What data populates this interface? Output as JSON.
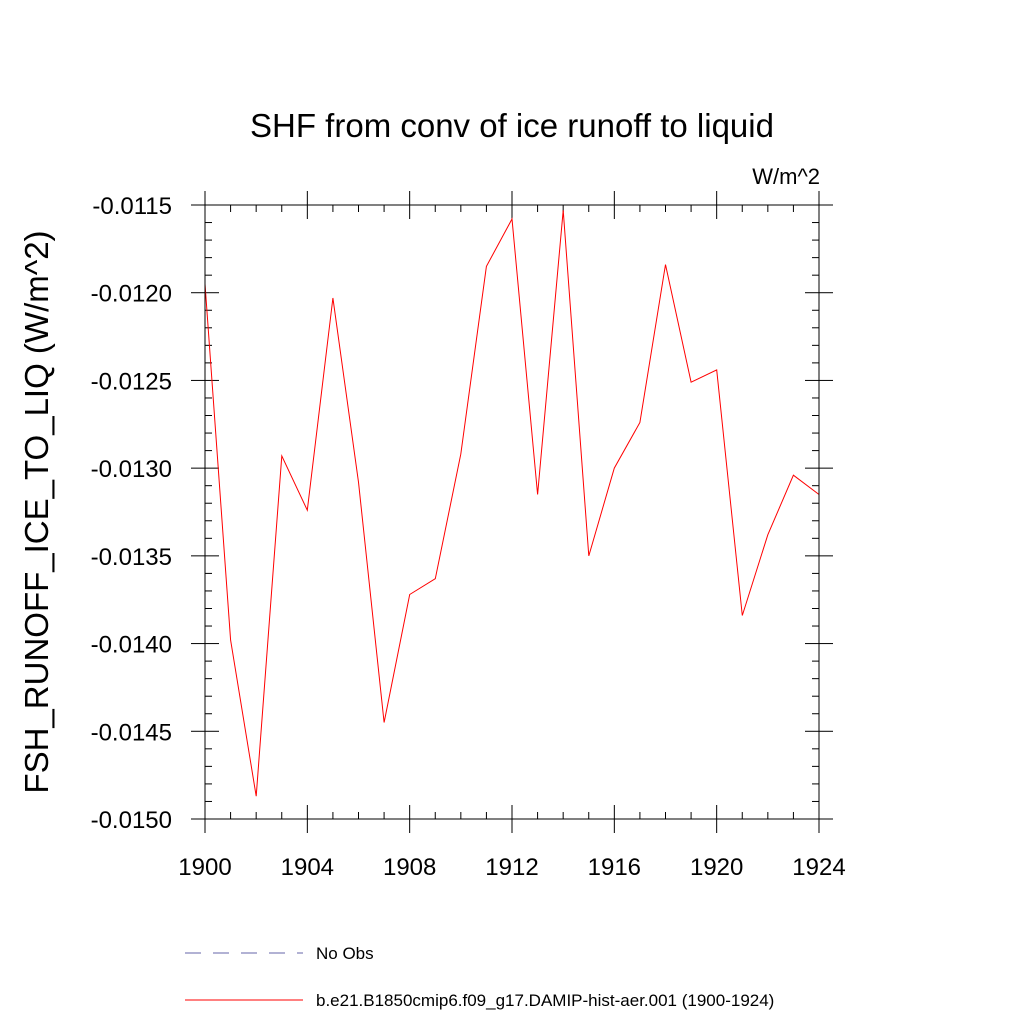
{
  "chart_data": {
    "type": "line",
    "title": "SHF from conv of ice runoff to liquid",
    "units_label": "W/m^2",
    "ylabel": "FSH_RUNOFF_ICE_TO_LIQ  (W/m^2)",
    "xlabel": "",
    "xlim": [
      1900,
      1924
    ],
    "ylim": [
      -0.015,
      -0.0115
    ],
    "x_ticks": [
      1900,
      1904,
      1908,
      1912,
      1916,
      1920,
      1924
    ],
    "x_tick_labels": [
      "1900",
      "1904",
      "1908",
      "1912",
      "1916",
      "1920",
      "1924"
    ],
    "y_ticks": [
      -0.0115,
      -0.012,
      -0.0125,
      -0.013,
      -0.0135,
      -0.014,
      -0.0145,
      -0.015
    ],
    "y_tick_labels": [
      "-0.0115",
      "-0.0120",
      "-0.0125",
      "-0.0130",
      "-0.0135",
      "-0.0140",
      "-0.0145",
      "-0.0150"
    ],
    "grid": false,
    "legend_position": "bottom",
    "series": [
      {
        "name": "b.e21.B1850cmip6.f09_g17.DAMIP-hist-aer.001 (1900-1924)",
        "color": "#ff0000",
        "dash": "solid",
        "x": [
          1900,
          1901,
          1902,
          1903,
          1904,
          1905,
          1906,
          1907,
          1908,
          1909,
          1910,
          1911,
          1912,
          1913,
          1914,
          1915,
          1916,
          1917,
          1918,
          1919,
          1920,
          1921,
          1922,
          1923,
          1924
        ],
        "y": [
          -0.01195,
          -0.01398,
          -0.01487,
          -0.01293,
          -0.01324,
          -0.01203,
          -0.01308,
          -0.01445,
          -0.01372,
          -0.01363,
          -0.01292,
          -0.01185,
          -0.01158,
          -0.01315,
          -0.01153,
          -0.0135,
          -0.013,
          -0.01274,
          -0.01184,
          -0.01251,
          -0.01244,
          -0.01384,
          -0.01338,
          -0.01304,
          -0.01315
        ]
      }
    ],
    "legend": [
      {
        "label": "No Obs",
        "color": "#6666aa",
        "dash": "dashed"
      },
      {
        "label": "b.e21.B1850cmip6.f09_g17.DAMIP-hist-aer.001 (1900-1924)",
        "color": "#ff0000",
        "dash": "solid"
      }
    ]
  }
}
